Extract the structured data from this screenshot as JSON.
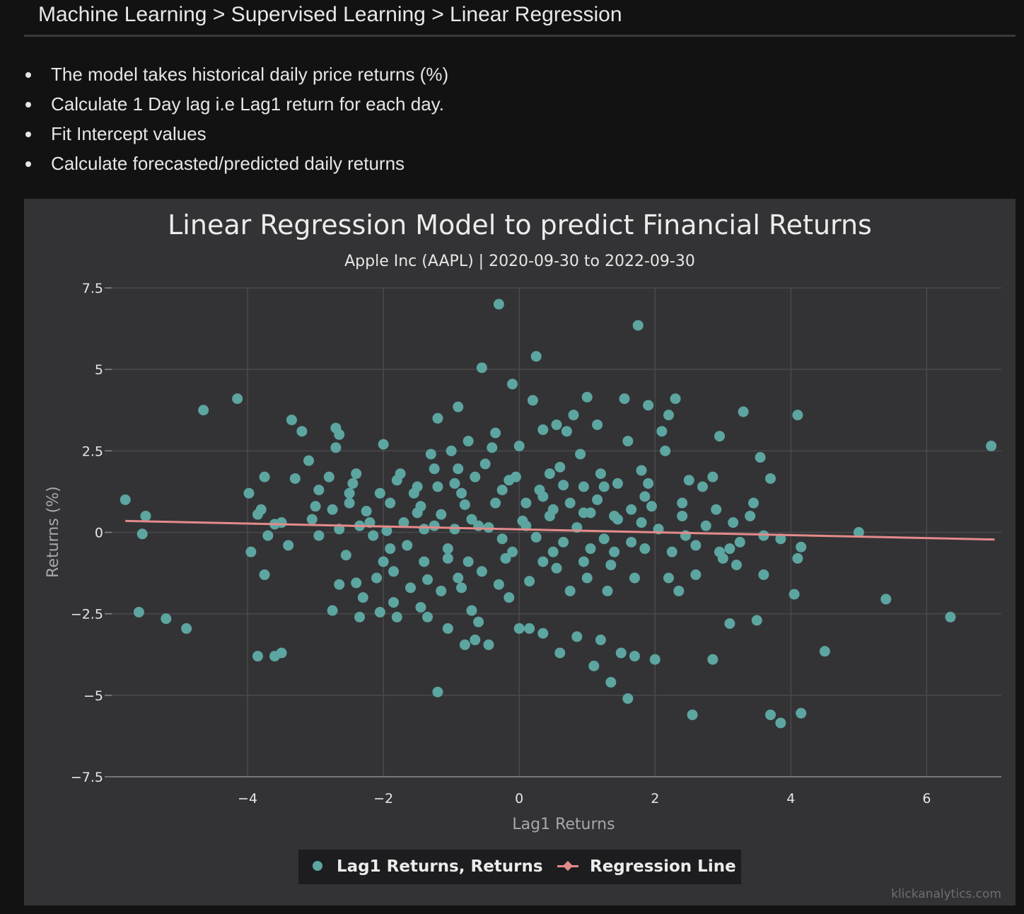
{
  "breadcrumb": "Machine Learning > Supervised Learning > Linear Regression",
  "bullets": [
    "The model takes historical daily price returns (%)",
    "Calculate 1 Day lag i.e Lag1 return for each day.",
    "Fit Intercept values",
    "Calculate forecasted/predicted daily returns"
  ],
  "colors": {
    "points": "#5da5a0",
    "regression": "#e48a8a",
    "grid": "#4a4a4c",
    "text": "#e6e6e6"
  },
  "credit": "klickanalytics.com",
  "chart_data": {
    "type": "scatter",
    "title": "Linear Regression Model to predict Financial Returns",
    "subtitle": "Apple Inc (AAPL) | 2020-09-30 to 2022-09-30",
    "xlabel": "Lag1 Returns",
    "ylabel": "Returns (%)",
    "xlim": [
      -6.0,
      7.1
    ],
    "ylim": [
      -7.5,
      7.5
    ],
    "x_ticks": [
      -4,
      -2,
      0,
      2,
      4,
      6
    ],
    "x_tick_labels": [
      "−4",
      "−2",
      "0",
      "2",
      "4",
      "6"
    ],
    "y_ticks": [
      7.5,
      5,
      2.5,
      0,
      -2.5,
      -5,
      -7.5
    ],
    "y_tick_labels": [
      "7.5",
      "5",
      "2.5",
      "0",
      "−2.5",
      "−5",
      "−7.5"
    ],
    "grid": true,
    "legend_position": "bottom-center",
    "series": [
      {
        "name": "Lag1 Returns, Returns",
        "kind": "points",
        "points": [
          [
            -5.8,
            1.0
          ],
          [
            -5.5,
            0.5
          ],
          [
            -5.6,
            -2.45
          ],
          [
            -5.55,
            -0.05
          ],
          [
            -5.2,
            -2.65
          ],
          [
            -4.9,
            -2.95
          ],
          [
            -4.65,
            3.75
          ],
          [
            -4.15,
            4.1
          ],
          [
            -3.95,
            -0.6
          ],
          [
            -3.85,
            0.55
          ],
          [
            -3.8,
            0.7
          ],
          [
            -3.75,
            1.7
          ],
          [
            -3.7,
            -0.1
          ],
          [
            -3.75,
            -1.3
          ],
          [
            -3.85,
            -3.8
          ],
          [
            -3.6,
            -3.8
          ],
          [
            -3.5,
            -3.7
          ],
          [
            -3.4,
            -0.4
          ],
          [
            -3.35,
            3.45
          ],
          [
            -3.2,
            3.1
          ],
          [
            -3.3,
            1.65
          ],
          [
            -3.1,
            2.2
          ],
          [
            -3.05,
            0.4
          ],
          [
            -3.6,
            0.25
          ],
          [
            -3.5,
            0.3
          ],
          [
            -3.98,
            1.2
          ],
          [
            -2.95,
            -0.1
          ],
          [
            -2.95,
            1.3
          ],
          [
            -2.8,
            1.7
          ],
          [
            -2.7,
            3.2
          ],
          [
            -2.65,
            3.0
          ],
          [
            -2.7,
            2.6
          ],
          [
            -2.75,
            0.7
          ],
          [
            -2.65,
            0.1
          ],
          [
            -2.75,
            -2.4
          ],
          [
            -2.65,
            -1.6
          ],
          [
            -2.55,
            -0.7
          ],
          [
            -2.5,
            1.2
          ],
          [
            -2.45,
            1.5
          ],
          [
            -2.4,
            1.8
          ],
          [
            -2.35,
            0.2
          ],
          [
            -2.4,
            -1.55
          ],
          [
            -2.35,
            -2.6
          ],
          [
            -2.3,
            -2.0
          ],
          [
            -2.25,
            0.65
          ],
          [
            -2.15,
            -0.1
          ],
          [
            -2.0,
            -0.9
          ],
          [
            -2.05,
            -2.45
          ],
          [
            -2.0,
            2.7
          ],
          [
            -2.05,
            1.2
          ],
          [
            -1.95,
            0.05
          ],
          [
            -1.9,
            -0.5
          ],
          [
            -1.85,
            -1.2
          ],
          [
            -1.85,
            -2.15
          ],
          [
            -1.8,
            -2.6
          ],
          [
            -1.75,
            1.8
          ],
          [
            -1.7,
            0.3
          ],
          [
            -1.6,
            -1.7
          ],
          [
            -1.55,
            1.2
          ],
          [
            -1.5,
            1.4
          ],
          [
            -1.45,
            0.8
          ],
          [
            -1.4,
            0.1
          ],
          [
            -1.45,
            -2.3
          ],
          [
            -1.35,
            -2.6
          ],
          [
            -1.35,
            -1.45
          ],
          [
            -1.3,
            2.4
          ],
          [
            -1.25,
            1.95
          ],
          [
            -1.2,
            3.5
          ],
          [
            -1.2,
            -4.9
          ],
          [
            -1.15,
            0.55
          ],
          [
            -1.05,
            -0.5
          ],
          [
            -1.05,
            -2.95
          ],
          [
            -1.0,
            2.5
          ],
          [
            -0.95,
            1.5
          ],
          [
            -0.9,
            3.85
          ],
          [
            -0.9,
            1.95
          ],
          [
            -0.85,
            -1.7
          ],
          [
            -0.8,
            -3.45
          ],
          [
            -0.8,
            0.85
          ],
          [
            -0.75,
            2.8
          ],
          [
            -0.7,
            -2.4
          ],
          [
            -0.65,
            -3.3
          ],
          [
            -0.6,
            -2.75
          ],
          [
            -0.6,
            0.2
          ],
          [
            -0.55,
            5.05
          ],
          [
            -0.5,
            2.1
          ],
          [
            -0.45,
            -3.45
          ],
          [
            -0.4,
            2.6
          ],
          [
            -0.35,
            3.05
          ],
          [
            -0.3,
            7.0
          ],
          [
            -0.25,
            1.3
          ],
          [
            -0.2,
            -0.8
          ],
          [
            -0.15,
            -2.0
          ],
          [
            -0.1,
            4.55
          ],
          [
            -0.05,
            1.7
          ],
          [
            0.0,
            2.65
          ],
          [
            0.0,
            -2.95
          ],
          [
            0.1,
            0.2
          ],
          [
            0.15,
            -2.95
          ],
          [
            0.2,
            4.05
          ],
          [
            0.25,
            5.4
          ],
          [
            0.3,
            1.3
          ],
          [
            0.35,
            3.15
          ],
          [
            0.35,
            -3.1
          ],
          [
            0.45,
            1.8
          ],
          [
            0.5,
            -0.6
          ],
          [
            0.55,
            3.3
          ],
          [
            0.6,
            -3.7
          ],
          [
            0.65,
            1.45
          ],
          [
            0.7,
            3.1
          ],
          [
            0.75,
            -1.8
          ],
          [
            0.8,
            3.6
          ],
          [
            0.85,
            -3.2
          ],
          [
            0.9,
            2.4
          ],
          [
            0.95,
            0.6
          ],
          [
            1.0,
            4.15
          ],
          [
            1.05,
            -0.5
          ],
          [
            1.1,
            -4.1
          ],
          [
            1.15,
            3.3
          ],
          [
            1.2,
            -3.3
          ],
          [
            1.25,
            1.4
          ],
          [
            1.3,
            -1.8
          ],
          [
            1.35,
            -4.6
          ],
          [
            1.4,
            0.5
          ],
          [
            1.45,
            1.5
          ],
          [
            1.5,
            -3.7
          ],
          [
            1.55,
            4.1
          ],
          [
            1.6,
            -5.1
          ],
          [
            1.6,
            2.8
          ],
          [
            1.65,
            -0.3
          ],
          [
            1.7,
            -3.8
          ],
          [
            1.75,
            6.35
          ],
          [
            1.8,
            0.3
          ],
          [
            1.85,
            1.1
          ],
          [
            1.9,
            3.9
          ],
          [
            1.95,
            0.8
          ],
          [
            2.0,
            -3.9
          ],
          [
            2.05,
            0.1
          ],
          [
            2.1,
            3.1
          ],
          [
            2.15,
            2.5
          ],
          [
            2.2,
            3.6
          ],
          [
            2.25,
            -0.6
          ],
          [
            2.3,
            4.1
          ],
          [
            2.35,
            -1.8
          ],
          [
            2.4,
            0.5
          ],
          [
            2.45,
            -0.1
          ],
          [
            2.5,
            1.6
          ],
          [
            2.55,
            -5.6
          ],
          [
            2.6,
            -0.4
          ],
          [
            2.7,
            1.4
          ],
          [
            2.75,
            0.2
          ],
          [
            2.85,
            -3.9
          ],
          [
            2.85,
            1.7
          ],
          [
            2.9,
            0.7
          ],
          [
            2.95,
            2.95
          ],
          [
            3.0,
            -0.8
          ],
          [
            3.1,
            -2.8
          ],
          [
            3.15,
            0.3
          ],
          [
            3.2,
            -1.0
          ],
          [
            3.25,
            -0.3
          ],
          [
            3.3,
            3.7
          ],
          [
            3.45,
            0.9
          ],
          [
            3.5,
            -2.7
          ],
          [
            3.55,
            2.3
          ],
          [
            3.6,
            -1.3
          ],
          [
            3.6,
            -0.1
          ],
          [
            3.7,
            -5.6
          ],
          [
            3.7,
            1.65
          ],
          [
            3.85,
            -5.85
          ],
          [
            3.85,
            -0.2
          ],
          [
            4.05,
            -1.9
          ],
          [
            4.1,
            -0.8
          ],
          [
            4.1,
            3.6
          ],
          [
            4.15,
            -0.45
          ],
          [
            4.15,
            -5.55
          ],
          [
            4.5,
            -3.65
          ],
          [
            5.0,
            0.0
          ],
          [
            5.4,
            -2.05
          ],
          [
            6.35,
            -2.6
          ],
          [
            6.95,
            2.65
          ],
          [
            -1.25,
            0.2
          ],
          [
            -0.95,
            0.1
          ],
          [
            -0.7,
            0.4
          ],
          [
            -0.45,
            0.15
          ],
          [
            -0.25,
            -0.2
          ],
          [
            0.05,
            0.35
          ],
          [
            0.25,
            -0.15
          ],
          [
            0.45,
            0.5
          ],
          [
            0.65,
            -0.3
          ],
          [
            0.85,
            0.15
          ],
          [
            1.05,
            0.6
          ],
          [
            1.25,
            -0.2
          ],
          [
            1.45,
            0.4
          ],
          [
            1.65,
            0.7
          ],
          [
            1.85,
            -0.5
          ],
          [
            -1.05,
            -0.8
          ],
          [
            -0.85,
            1.2
          ],
          [
            -0.55,
            -1.2
          ],
          [
            -0.35,
            0.9
          ],
          [
            -0.15,
            1.6
          ],
          [
            0.15,
            -1.5
          ],
          [
            0.35,
            1.1
          ],
          [
            0.55,
            -1.1
          ],
          [
            0.75,
            0.9
          ],
          [
            0.95,
            -0.9
          ],
          [
            1.15,
            1.0
          ],
          [
            1.35,
            -1.0
          ],
          [
            -1.5,
            0.6
          ],
          [
            -1.65,
            -0.4
          ],
          [
            -1.15,
            -1.8
          ],
          [
            -0.65,
            1.7
          ],
          [
            -0.1,
            -0.6
          ],
          [
            0.6,
            2.0
          ],
          [
            1.2,
            1.8
          ],
          [
            1.9,
            1.5
          ],
          [
            2.2,
            -1.4
          ],
          [
            -2.2,
            0.3
          ],
          [
            -1.9,
            0.9
          ],
          [
            -1.4,
            -0.9
          ],
          [
            -0.75,
            -0.9
          ],
          [
            0.35,
            -0.9
          ],
          [
            0.95,
            1.4
          ],
          [
            1.7,
            -1.4
          ],
          [
            2.4,
            0.9
          ],
          [
            2.95,
            -0.6
          ],
          [
            -3.0,
            0.8
          ],
          [
            -2.1,
            -1.4
          ],
          [
            -1.2,
            1.4
          ],
          [
            -0.3,
            -1.6
          ],
          [
            0.5,
            0.7
          ],
          [
            1.4,
            -0.6
          ],
          [
            2.6,
            -1.3
          ],
          [
            3.4,
            0.5
          ],
          [
            -2.5,
            0.9
          ],
          [
            -1.8,
            1.6
          ],
          [
            -0.9,
            -1.4
          ],
          [
            0.1,
            0.9
          ],
          [
            1.0,
            -1.4
          ],
          [
            1.8,
            1.9
          ],
          [
            3.1,
            -0.5
          ]
        ]
      },
      {
        "name": "Regression Line",
        "kind": "line",
        "points": [
          [
            -5.8,
            0.35
          ],
          [
            7.0,
            -0.22
          ]
        ]
      }
    ]
  }
}
